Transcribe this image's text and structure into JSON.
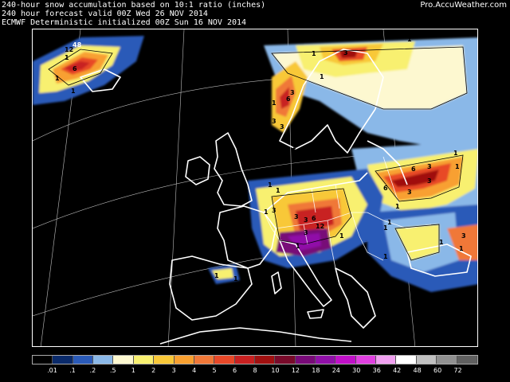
{
  "header": {
    "line1": "240-hour snow accumulation based on 10:1 ratio (inches)",
    "line2": "240 hour forecast valid 00Z Wed 26 NOV 2014",
    "line3": "ECMWF Deterministic initialized 00Z Sun 16 NOV 2014",
    "brand": "Pro.AccuWeather.com"
  },
  "legend": {
    "items": [
      {
        "label": "",
        "color": "#000000"
      },
      {
        "label": ".01",
        "color": "#0a2a6a"
      },
      {
        "label": ".1",
        "color": "#2a5ab8"
      },
      {
        "label": ".2",
        "color": "#8ab8e8"
      },
      {
        "label": ".5",
        "color": "#fdf8d0"
      },
      {
        "label": "1",
        "color": "#f8f070"
      },
      {
        "label": "2",
        "color": "#f8c838"
      },
      {
        "label": "3",
        "color": "#f8a030"
      },
      {
        "label": "4",
        "color": "#f07838"
      },
      {
        "label": "5",
        "color": "#e84828"
      },
      {
        "label": "6",
        "color": "#c82020"
      },
      {
        "label": "8",
        "color": "#a01010"
      },
      {
        "label": "10",
        "color": "#780a2a"
      },
      {
        "label": "12",
        "color": "#780a78"
      },
      {
        "label": "18",
        "color": "#9010a8"
      },
      {
        "label": "24",
        "color": "#c010c8"
      },
      {
        "label": "30",
        "color": "#e040e0"
      },
      {
        "label": "36",
        "color": "#f0a0f0"
      },
      {
        "label": "42",
        "color": "#ffffff"
      },
      {
        "label": "48",
        "color": "#c0c0c0"
      },
      {
        "label": "60",
        "color": "#909090"
      },
      {
        "label": "72",
        "color": "#606060"
      }
    ]
  },
  "contour_labels": [
    "1",
    "1",
    "1",
    "6",
    "12",
    "48",
    "1",
    "1",
    "1",
    "3",
    "6",
    "1",
    "3",
    "1",
    "1",
    "3",
    "3",
    "1",
    "1",
    "1",
    "1",
    "6",
    "3",
    "1",
    "1",
    "3",
    "6",
    "3",
    "1",
    "1",
    "3",
    "3",
    "3",
    "6",
    "12",
    "3",
    "1",
    "1",
    "1",
    "1",
    "1",
    "1",
    "1",
    "3",
    "1",
    "1",
    "1",
    "1"
  ]
}
